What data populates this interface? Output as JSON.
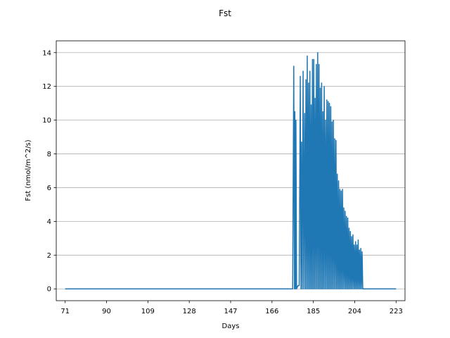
{
  "chart_data": {
    "type": "line",
    "title": "Fst",
    "xlabel": "Days",
    "ylabel": "Fst (nmol/m^2/s)",
    "xlim": [
      66.9,
      227.1
    ],
    "ylim": [
      -0.7,
      14.7
    ],
    "xticks": [
      71,
      90,
      109,
      128,
      147,
      166,
      185,
      204,
      223
    ],
    "yticks": [
      0,
      2,
      4,
      6,
      8,
      10,
      12,
      14
    ],
    "grid": "y",
    "color": "#1f77b4",
    "series": [
      {
        "values": [
          [
            71,
            0.0
          ],
          [
            175.5,
            0.0
          ],
          [
            176,
            13.2
          ],
          [
            176.3,
            0.0
          ],
          [
            176.5,
            10.5
          ],
          [
            176.8,
            0.0
          ],
          [
            177,
            10.0
          ],
          [
            177.3,
            0.0
          ],
          [
            178,
            0.2
          ],
          [
            178.5,
            0.2
          ],
          [
            179,
            12.6
          ],
          [
            179.3,
            0.0
          ],
          [
            179.6,
            8.7
          ],
          [
            179.9,
            0.0
          ],
          [
            180.3,
            12.9
          ],
          [
            180.6,
            0.0
          ],
          [
            181,
            10.4
          ],
          [
            181.3,
            0.0
          ],
          [
            181.6,
            12.4
          ],
          [
            181.9,
            0.0
          ],
          [
            182.2,
            13.8
          ],
          [
            182.5,
            0.0
          ],
          [
            182.8,
            12.2
          ],
          [
            183.1,
            0.0
          ],
          [
            183.4,
            12.9
          ],
          [
            183.7,
            0.0
          ],
          [
            184,
            10.9
          ],
          [
            184.3,
            0.0
          ],
          [
            184.6,
            13.6
          ],
          [
            184.9,
            0.0
          ],
          [
            185.2,
            13.6
          ],
          [
            185.5,
            0.0
          ],
          [
            185.8,
            11.3
          ],
          [
            186.1,
            0.0
          ],
          [
            186.4,
            13.3
          ],
          [
            186.7,
            0.0
          ],
          [
            187,
            14.0
          ],
          [
            187.3,
            0.0
          ],
          [
            187.6,
            13.3
          ],
          [
            187.9,
            0.0
          ],
          [
            188.2,
            11.9
          ],
          [
            188.5,
            0.0
          ],
          [
            188.8,
            12.2
          ],
          [
            189.1,
            0.0
          ],
          [
            189.4,
            10.5
          ],
          [
            189.7,
            0.0
          ],
          [
            190,
            12.0
          ],
          [
            190.3,
            0.0
          ],
          [
            190.6,
            10.0
          ],
          [
            190.9,
            0.0
          ],
          [
            191.2,
            11.2
          ],
          [
            191.5,
            0.0
          ],
          [
            191.8,
            11.1
          ],
          [
            192.1,
            0.0
          ],
          [
            192.4,
            11.0
          ],
          [
            192.7,
            0.0
          ],
          [
            193,
            10.8
          ],
          [
            193.3,
            0.0
          ],
          [
            193.6,
            9.9
          ],
          [
            193.9,
            0.0
          ],
          [
            194.2,
            10.0
          ],
          [
            194.5,
            0.0
          ],
          [
            194.8,
            8.9
          ],
          [
            195.1,
            0.0
          ],
          [
            195.4,
            8.8
          ],
          [
            195.7,
            0.0
          ],
          [
            196,
            6.8
          ],
          [
            196.3,
            0.0
          ],
          [
            196.6,
            6.4
          ],
          [
            196.9,
            0.0
          ],
          [
            197.2,
            5.9
          ],
          [
            197.5,
            0.0
          ],
          [
            197.8,
            5.8
          ],
          [
            198.1,
            0.0
          ],
          [
            198.4,
            5.9
          ],
          [
            198.7,
            0.0
          ],
          [
            199,
            4.8
          ],
          [
            199.3,
            0.0
          ],
          [
            199.6,
            4.6
          ],
          [
            199.9,
            0.0
          ],
          [
            200.2,
            4.3
          ],
          [
            200.5,
            0.0
          ],
          [
            200.8,
            4.2
          ],
          [
            201.1,
            0.0
          ],
          [
            201.4,
            3.6
          ],
          [
            201.7,
            0.0
          ],
          [
            202,
            3.4
          ],
          [
            202.3,
            0.0
          ],
          [
            202.6,
            3.1
          ],
          [
            202.9,
            0.0
          ],
          [
            203.2,
            3.2
          ],
          [
            203.5,
            0.0
          ],
          [
            203.8,
            2.6
          ],
          [
            204.1,
            0.0
          ],
          [
            204.4,
            2.8
          ],
          [
            204.7,
            0.0
          ],
          [
            205,
            2.6
          ],
          [
            205.3,
            0.0
          ],
          [
            205.6,
            2.9
          ],
          [
            205.9,
            0.0
          ],
          [
            206.2,
            2.3
          ],
          [
            206.5,
            0.0
          ],
          [
            206.8,
            2.4
          ],
          [
            207.1,
            0.0
          ],
          [
            207.4,
            2.2
          ],
          [
            207.7,
            0.0
          ],
          [
            208,
            0.0
          ],
          [
            210,
            0.0
          ],
          [
            223,
            0.0
          ]
        ]
      }
    ]
  }
}
